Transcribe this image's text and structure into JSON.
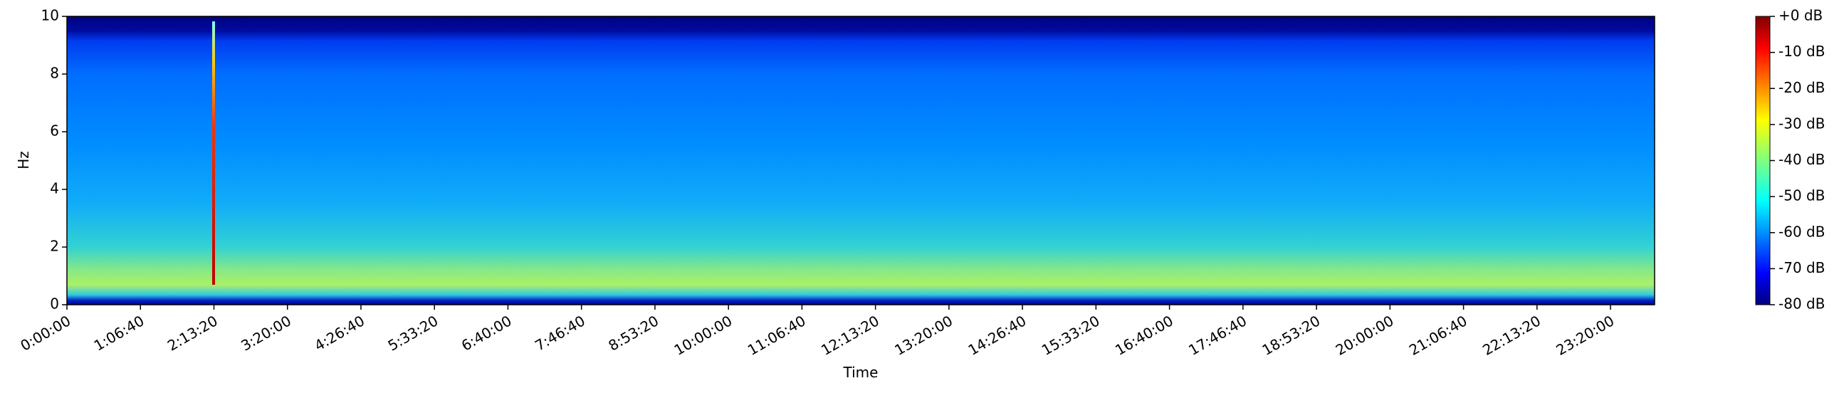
{
  "chart_data": {
    "type": "spectrogram",
    "xlabel": "Time",
    "ylabel": "Hz",
    "xlim": [
      0,
      86400
    ],
    "xticks": [
      {
        "value": 0,
        "label": "0:00:00"
      },
      {
        "value": 4000,
        "label": "1:06:40"
      },
      {
        "value": 8000,
        "label": "2:13:20"
      },
      {
        "value": 12000,
        "label": "3:20:00"
      },
      {
        "value": 16000,
        "label": "4:26:40"
      },
      {
        "value": 20000,
        "label": "5:33:20"
      },
      {
        "value": 24000,
        "label": "6:40:00"
      },
      {
        "value": 28000,
        "label": "7:46:40"
      },
      {
        "value": 32000,
        "label": "8:53:20"
      },
      {
        "value": 36000,
        "label": "10:00:00"
      },
      {
        "value": 40000,
        "label": "11:06:40"
      },
      {
        "value": 44000,
        "label": "12:13:20"
      },
      {
        "value": 48000,
        "label": "13:20:00"
      },
      {
        "value": 52000,
        "label": "14:26:40"
      },
      {
        "value": 56000,
        "label": "15:33:20"
      },
      {
        "value": 60000,
        "label": "16:40:00"
      },
      {
        "value": 64000,
        "label": "17:46:40"
      },
      {
        "value": 68000,
        "label": "18:53:20"
      },
      {
        "value": 72000,
        "label": "20:00:00"
      },
      {
        "value": 76000,
        "label": "21:06:40"
      },
      {
        "value": 80000,
        "label": "22:13:20"
      },
      {
        "value": 84000,
        "label": "23:20:00"
      }
    ],
    "ylim": [
      0,
      10
    ],
    "yticks": [
      0,
      2,
      4,
      6,
      8,
      10
    ],
    "colorbar": {
      "lim": [
        -80,
        0
      ],
      "ticks": [
        {
          "value": 0,
          "label": "+0 dB"
        },
        {
          "value": -10,
          "label": "-10 dB"
        },
        {
          "value": -20,
          "label": "-20 dB"
        },
        {
          "value": -30,
          "label": "-30 dB"
        },
        {
          "value": -40,
          "label": "-40 dB"
        },
        {
          "value": -50,
          "label": "-50 dB"
        },
        {
          "value": -60,
          "label": "-60 dB"
        },
        {
          "value": -70,
          "label": "-70 dB"
        },
        {
          "value": -80,
          "label": "-80 dB"
        }
      ]
    }
  }
}
